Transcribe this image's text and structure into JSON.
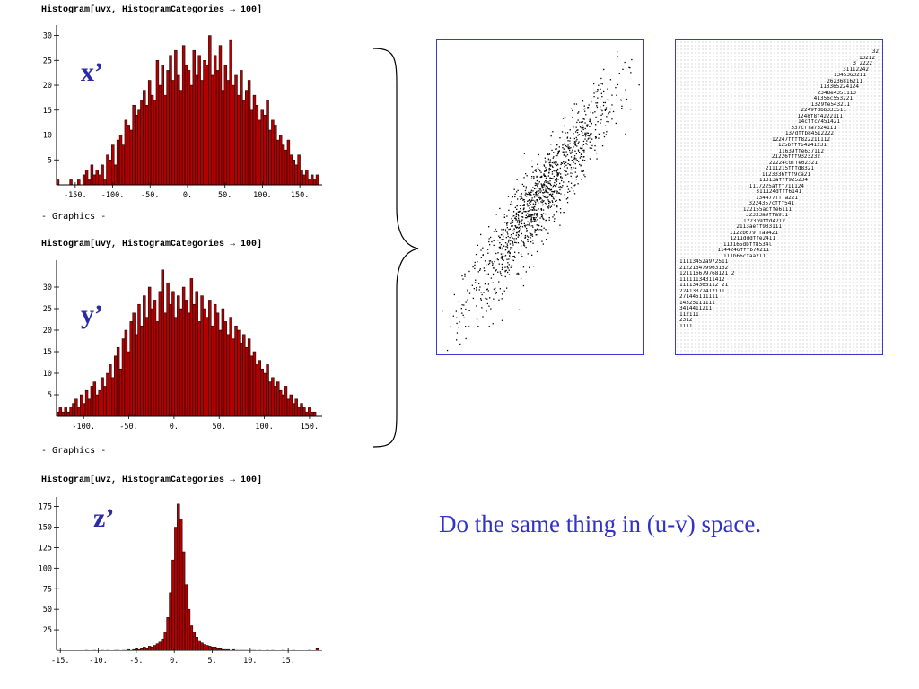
{
  "histograms": [
    {
      "command": "Histogram[uvx, HistogramCategories → 100]",
      "label": "x’",
      "footer": "- Graphics -",
      "yticks": [
        "5",
        "10",
        "15",
        "20",
        "25",
        "30"
      ],
      "xticks": [
        "-150.",
        "-100.",
        "-50.",
        "0.",
        "50.",
        "100.",
        "150."
      ],
      "chart_data": {
        "type": "bar",
        "x_range": [
          -175,
          175
        ],
        "ylim": [
          0,
          31
        ],
        "bin_width": 3.5,
        "values": [
          1,
          0,
          0,
          0,
          0,
          1,
          0,
          0,
          1,
          0,
          2,
          3,
          1,
          4,
          2,
          3,
          2,
          4,
          1,
          6,
          5,
          8,
          4,
          9,
          10,
          8,
          13,
          12,
          11,
          16,
          14,
          15,
          17,
          19,
          16,
          21,
          18,
          17,
          25,
          20,
          24,
          18,
          23,
          26,
          21,
          27,
          22,
          19,
          28,
          24,
          23,
          20,
          27,
          22,
          26,
          21,
          25,
          24,
          30,
          22,
          26,
          23,
          28,
          19,
          24,
          21,
          29,
          20,
          22,
          18,
          23,
          17,
          19,
          21,
          15,
          18,
          16,
          13,
          15,
          14,
          17,
          11,
          13,
          12,
          9,
          10,
          8,
          7,
          9,
          6,
          5,
          4,
          6,
          3,
          2,
          3,
          1,
          2,
          1,
          2
        ]
      }
    },
    {
      "command": "Histogram[uvy, HistogramCategories → 100]",
      "label": "y’",
      "footer": "- Graphics -",
      "yticks": [
        "5",
        "10",
        "15",
        "20",
        "25",
        "30"
      ],
      "xticks": [
        "-100.",
        "-50.",
        "0.",
        "50.",
        "100.",
        "150."
      ],
      "chart_data": {
        "type": "bar",
        "x_range": [
          -130,
          160
        ],
        "ylim": [
          0,
          35
        ],
        "bin_width": 2.9,
        "values": [
          1,
          2,
          1,
          2,
          1,
          2,
          3,
          4,
          2,
          5,
          3,
          6,
          4,
          7,
          8,
          5,
          6,
          9,
          7,
          10,
          12,
          9,
          14,
          16,
          11,
          18,
          20,
          15,
          22,
          24,
          19,
          26,
          21,
          28,
          23,
          30,
          25,
          27,
          22,
          29,
          34,
          24,
          31,
          26,
          29,
          23,
          28,
          25,
          30,
          27,
          24,
          32,
          26,
          29,
          22,
          28,
          25,
          23,
          27,
          21,
          26,
          24,
          20,
          25,
          22,
          19,
          23,
          18,
          21,
          20,
          17,
          19,
          16,
          18,
          14,
          15,
          12,
          13,
          11,
          10,
          12,
          8,
          9,
          7,
          8,
          6,
          5,
          7,
          4,
          5,
          3,
          4,
          2,
          3,
          2,
          1,
          2,
          1,
          1,
          0
        ]
      }
    },
    {
      "command": "Histogram[uvz, HistogramCategories → 100]",
      "label": "z’",
      "footer": "",
      "yticks": [
        "25",
        "50",
        "75",
        "100",
        "125",
        "150",
        "175"
      ],
      "xticks": [
        "-15.",
        "-10.",
        "-5.",
        "0.",
        "5.",
        "10.",
        "15."
      ],
      "chart_data": {
        "type": "bar",
        "x_range": [
          -15.5,
          19
        ],
        "ylim": [
          0,
          180
        ],
        "bin_width": 0.345,
        "values": [
          1,
          0,
          0,
          0,
          0,
          0,
          0,
          0,
          0,
          0,
          0,
          1,
          0,
          0,
          1,
          0,
          0,
          1,
          0,
          1,
          0,
          0,
          1,
          1,
          0,
          1,
          1,
          2,
          1,
          2,
          3,
          2,
          3,
          4,
          3,
          5,
          4,
          6,
          8,
          10,
          14,
          22,
          40,
          70,
          110,
          150,
          178,
          160,
          120,
          80,
          50,
          30,
          22,
          16,
          12,
          9,
          7,
          6,
          5,
          4,
          4,
          3,
          3,
          2,
          2,
          2,
          1,
          2,
          1,
          1,
          1,
          1,
          1,
          0,
          1,
          1,
          0,
          1,
          0,
          0,
          1,
          0,
          1,
          0,
          0,
          0,
          1,
          0,
          0,
          0,
          1,
          0,
          0,
          0,
          0,
          0,
          1,
          0,
          0,
          3
        ]
      }
    }
  ],
  "scatter": {
    "point_count": 1200,
    "correlation": 0.93
  },
  "table": {
    "rows": [
      "32",
      "13212",
      "3 2222",
      "31112242",
      "1345363211",
      "26236816211",
      "113365224124",
      "2348e4351113",
      "41356c553221",
      "1329fe543211",
      "2249fdbb333511",
      "1248f8f4222111",
      "14cffc7451421",
      "337cffa7324111",
      "137dffb84512222",
      "12247ffff822211112",
      "125bfff64241231",
      "11639ffe637112",
      "21226fff9323232",
      "22224cdffe62321",
      "2111215fffd8321",
      "1123336fff9ca21",
      "11313afff925234",
      "1117225afff711124",
      "311124dfff6141",
      "134477fffa221",
      "3224357cfff541",
      "122155acffe6111",
      "32333a9ffa911",
      "1223b9ffd4212",
      "2113aeff933111",
      "1122b679ffaa421",
      "1211dddffe2411",
      "113165dbff8534l",
      "1144246fffb74211",
      "1111b66cfaa211",
      "11113452a972511",
      "212213479963132",
      "121116679768121 2",
      "11111134311412",
      "111134365112 21",
      "22413372412111",
      "271445111111",
      "14325111111",
      "3414411211",
      "112111",
      "2312",
      "1111"
    ]
  },
  "caption": "Do the same thing in (u-v) space."
}
